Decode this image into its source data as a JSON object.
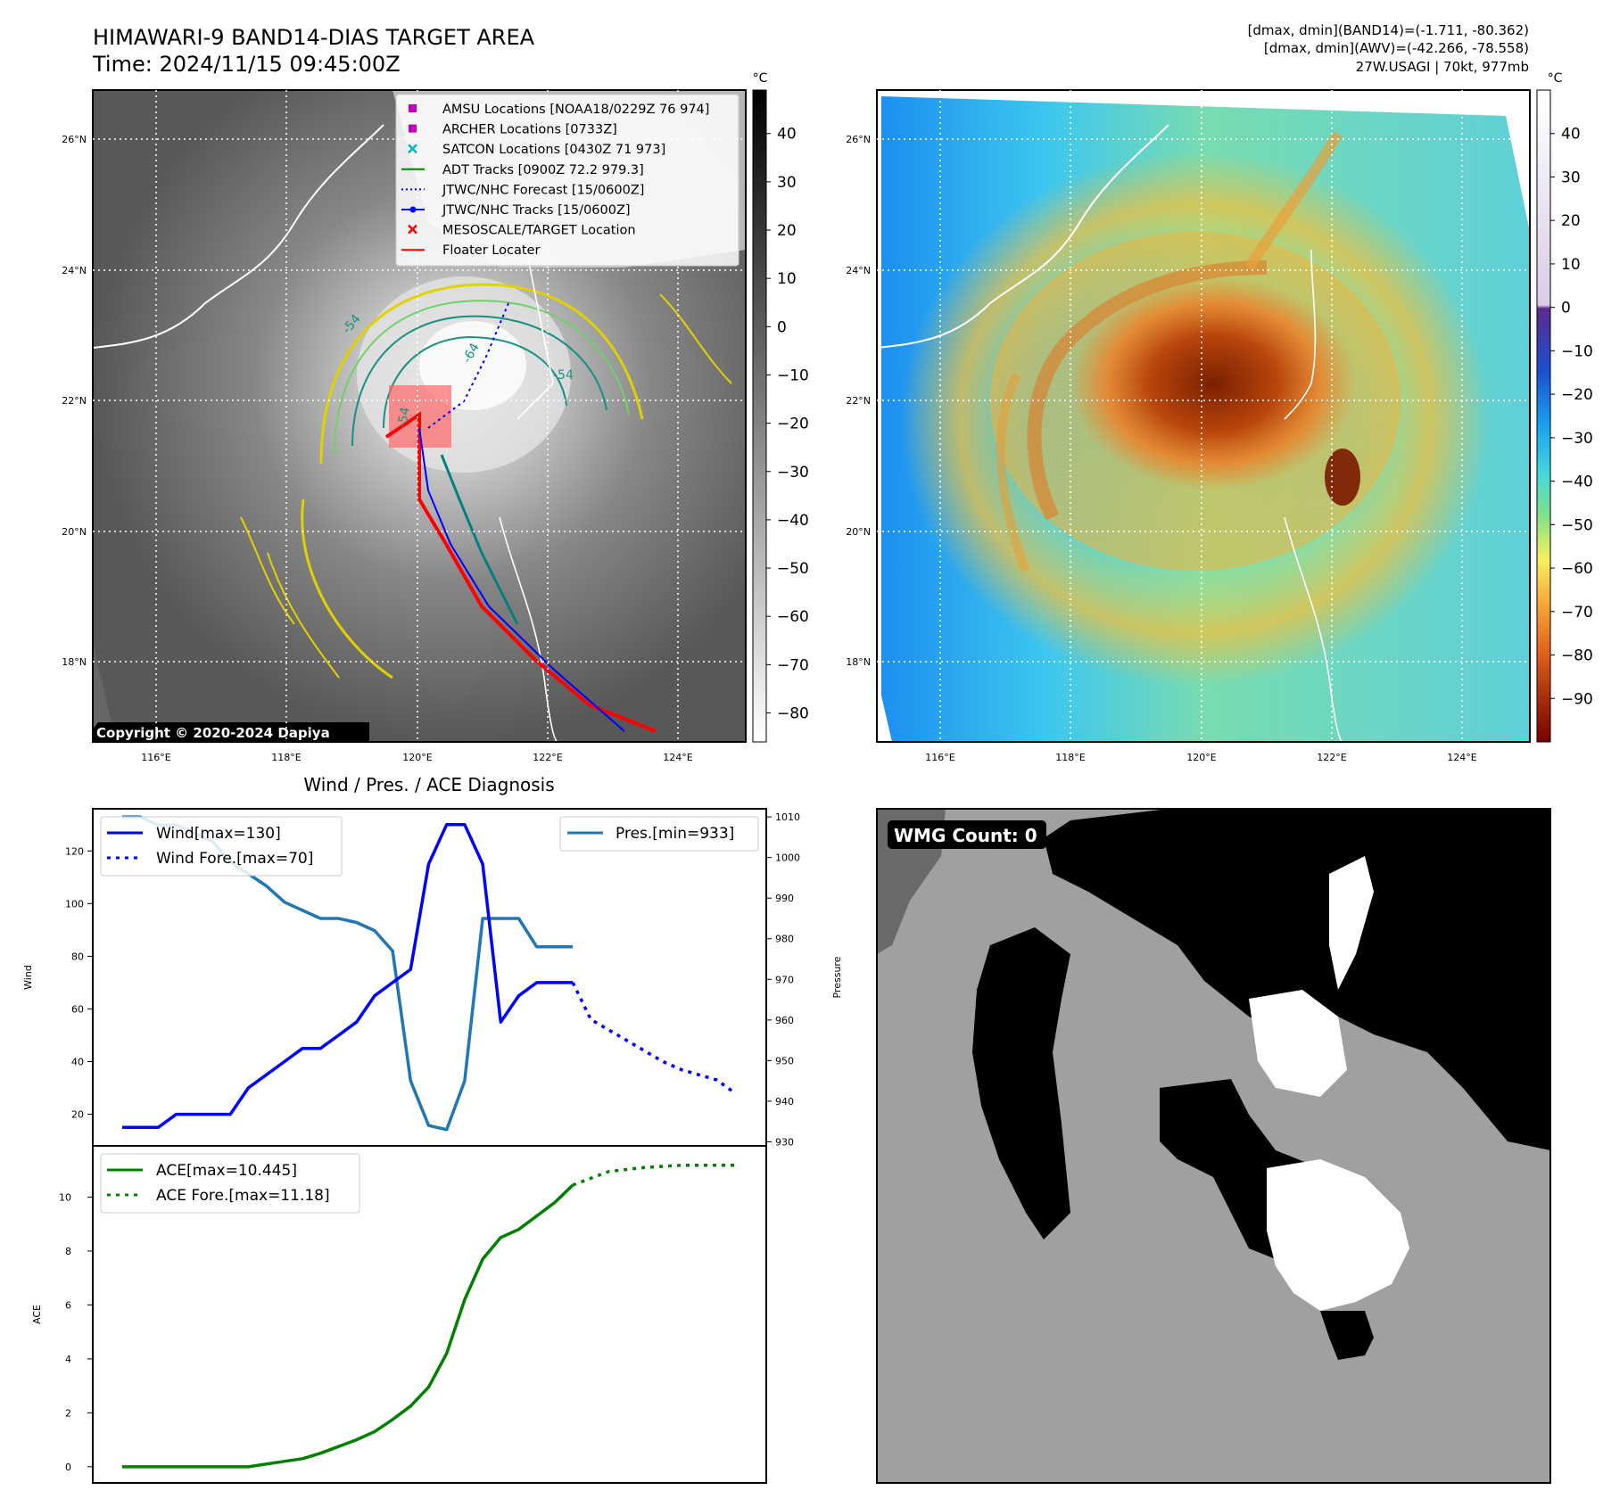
{
  "header": {
    "title_line1": "HIMAWARI-9 BAND14-DIAS TARGET AREA",
    "title_line2": "Time: 2024/11/15 09:45:00Z",
    "stats_line1": "[dmax, dmin](BAND14)=(-1.711, -80.362)",
    "stats_line2": "[dmax, dmin](AWV)=(-42.266, -78.558)",
    "stats_line3": "27W.USAGI | 70kt, 977mb"
  },
  "map": {
    "lon_ticks": [
      "116°E",
      "118°E",
      "120°E",
      "122°E",
      "124°E"
    ],
    "lat_ticks": [
      "26°N",
      "24°N",
      "22°N",
      "20°N",
      "18°N"
    ],
    "copyright": "Copyright © 2020-2024 Dapiya",
    "contour_labels": [
      "-54",
      "-64",
      "-54",
      "-54"
    ],
    "legend": [
      {
        "label": "AMSU Locations [NOAA18/0229Z 76 974]",
        "color": "#c000c0",
        "marker": "square"
      },
      {
        "label": "ARCHER Locations [0733Z]",
        "color": "#c000c0",
        "marker": "square"
      },
      {
        "label": "SATCON Locations [0430Z 71 973]",
        "color": "#00b8b8",
        "marker": "x"
      },
      {
        "label": "ADT Tracks [0900Z 72.2 979.3]",
        "color": "#008000",
        "marker": "line"
      },
      {
        "label": "JTWC/NHC Forecast [15/0600Z]",
        "color": "#0000ff",
        "marker": "dotted"
      },
      {
        "label": "JTWC/NHC Tracks [15/0600Z]",
        "color": "#0000ff",
        "marker": "line-dot"
      },
      {
        "label": "MESOSCALE/TARGET Location",
        "color": "#ff0000",
        "marker": "x"
      },
      {
        "label": "Floater Locater",
        "color": "#ff0000",
        "marker": "line"
      }
    ]
  },
  "colorbar_gray": {
    "unit": "°C",
    "ticks": [
      "40",
      "30",
      "20",
      "10",
      "0",
      "−10",
      "−20",
      "−30",
      "−40",
      "−50",
      "−60",
      "−70",
      "−80"
    ],
    "range": [
      -86,
      49
    ]
  },
  "colorbar_color": {
    "unit": "°C",
    "ticks": [
      "40",
      "30",
      "20",
      "10",
      "0",
      "−10",
      "−20",
      "−30",
      "−40",
      "−50",
      "−60",
      "−70",
      "−80",
      "−90"
    ],
    "range": [
      -100,
      50
    ]
  },
  "diag": {
    "title": "Wind / Pres. / ACE Diagnosis",
    "wind_ylabel": "Wind",
    "pres_ylabel": "Pressure",
    "ace_ylabel": "ACE",
    "wind_ticks": [
      "20",
      "40",
      "60",
      "80",
      "100",
      "120"
    ],
    "pres_ticks": [
      "930",
      "940",
      "950",
      "960",
      "970",
      "980",
      "990",
      "1000",
      "1010"
    ],
    "ace_ticks": [
      "0",
      "2",
      "4",
      "6",
      "8",
      "10"
    ],
    "legend_wind": "Wind[max=130]",
    "legend_wind_fore": "Wind Fore.[max=70]",
    "legend_pres": "Pres.[min=933]",
    "legend_ace": "ACE[max=10.445]",
    "legend_ace_fore": "ACE Fore.[max=11.18]",
    "wmg_label": "WMG Count: 0"
  },
  "chart_data": [
    {
      "type": "line",
      "title": "Wind / Pres. / ACE Diagnosis",
      "ylabel": "Wind",
      "ylim": [
        8,
        136
      ],
      "x": [
        0,
        1,
        2,
        3,
        4,
        5,
        6,
        7,
        8,
        9,
        10,
        11,
        12,
        13,
        14,
        15,
        16,
        17,
        18,
        19,
        20,
        21,
        22,
        23,
        24,
        25
      ],
      "series": [
        {
          "name": "Wind[max=130]",
          "color": "#0000ff",
          "values": [
            15,
            15,
            15,
            20,
            20,
            20,
            20,
            30,
            35,
            40,
            45,
            45,
            50,
            55,
            65,
            70,
            75,
            115,
            130,
            130,
            115,
            55,
            65,
            70,
            70,
            70
          ]
        },
        {
          "name": "Wind Fore.[max=70]",
          "color": "#0000ff",
          "style": "dotted",
          "x": [
            25,
            26,
            27,
            28,
            29,
            30,
            31,
            32,
            33,
            34
          ],
          "values": [
            70,
            56,
            52,
            48,
            44,
            40,
            37,
            35,
            33,
            28
          ]
        }
      ]
    },
    {
      "type": "line",
      "ylabel": "Pressure",
      "ylim": [
        929,
        1012
      ],
      "x": [
        0,
        1,
        2,
        3,
        4,
        5,
        6,
        7,
        8,
        9,
        10,
        11,
        12,
        13,
        14,
        15,
        16,
        17,
        18,
        19,
        20,
        21,
        22,
        23,
        24,
        25
      ],
      "series": [
        {
          "name": "Pres.[min=933]",
          "color": "#1f77b4",
          "values": [
            1010,
            1010,
            1008,
            1008,
            1006,
            1004,
            999,
            996,
            993,
            989,
            987,
            985,
            985,
            984,
            982,
            977,
            945,
            934,
            933,
            945,
            985,
            985,
            985,
            978,
            978,
            978
          ]
        }
      ]
    },
    {
      "type": "line",
      "ylabel": "ACE",
      "ylim": [
        -0.6,
        11.9
      ],
      "x": [
        0,
        1,
        2,
        3,
        4,
        5,
        6,
        7,
        8,
        9,
        10,
        11,
        12,
        13,
        14,
        15,
        16,
        17,
        18,
        19,
        20,
        21,
        22,
        23,
        24,
        25
      ],
      "series": [
        {
          "name": "ACE[max=10.445]",
          "color": "#008000",
          "values": [
            0,
            0,
            0,
            0,
            0,
            0,
            0,
            0,
            0.1,
            0.2,
            0.3,
            0.5,
            0.75,
            1.0,
            1.3,
            1.75,
            2.25,
            2.95,
            4.2,
            6.2,
            7.7,
            8.5,
            8.8,
            9.3,
            9.8,
            10.445
          ]
        },
        {
          "name": "ACE Fore.[max=11.18]",
          "color": "#008000",
          "style": "dotted",
          "x": [
            25,
            27,
            29,
            31,
            34
          ],
          "values": [
            10.445,
            10.95,
            11.1,
            11.18,
            11.18
          ]
        }
      ]
    }
  ]
}
